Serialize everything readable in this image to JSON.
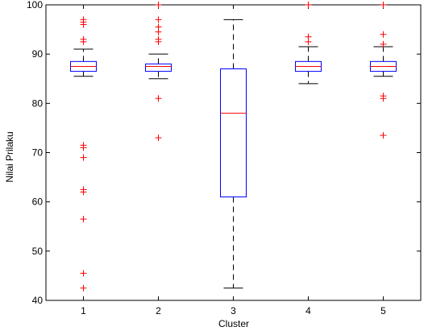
{
  "chart_data": {
    "type": "boxplot",
    "title": "",
    "xlabel": "Cluster",
    "ylabel": "Nilai Prilaku",
    "ylim": [
      40,
      100
    ],
    "yticks": [
      40,
      50,
      60,
      70,
      80,
      90,
      100
    ],
    "grid": false,
    "categories": [
      "1",
      "2",
      "3",
      "4",
      "5"
    ],
    "boxes": [
      {
        "category": "1",
        "whisker_low": 85.5,
        "q1": 86.5,
        "median": 87.5,
        "q3": 88.5,
        "whisker_high": 91.0,
        "outliers": [
          97.0,
          96.5,
          96.0,
          93.0,
          92.5,
          71.5,
          71.0,
          69.0,
          62.5,
          62.0,
          56.5,
          45.5,
          42.5
        ]
      },
      {
        "category": "2",
        "whisker_low": 85.0,
        "q1": 86.5,
        "median": 87.5,
        "q3": 88.0,
        "whisker_high": 90.0,
        "outliers": [
          100.0,
          97.0,
          95.5,
          94.5,
          93.0,
          92.5,
          81.0,
          73.0
        ]
      },
      {
        "category": "3",
        "whisker_low": 42.5,
        "q1": 61.0,
        "median": 78.0,
        "q3": 87.0,
        "whisker_high": 97.0,
        "outliers": []
      },
      {
        "category": "4",
        "whisker_low": 84.0,
        "q1": 86.5,
        "median": 87.5,
        "q3": 88.5,
        "whisker_high": 91.5,
        "outliers": [
          100.0,
          93.5,
          92.5
        ]
      },
      {
        "category": "5",
        "whisker_low": 85.5,
        "q1": 86.5,
        "median": 87.5,
        "q3": 88.5,
        "whisker_high": 91.5,
        "outliers": [
          100.0,
          94.0,
          92.0,
          81.5,
          81.0,
          73.5
        ]
      }
    ],
    "colors": {
      "box": "#0000ff",
      "median": "#ff0000",
      "whisker": "#000000",
      "outlier": "#ff0000",
      "axis": "#000000"
    }
  }
}
